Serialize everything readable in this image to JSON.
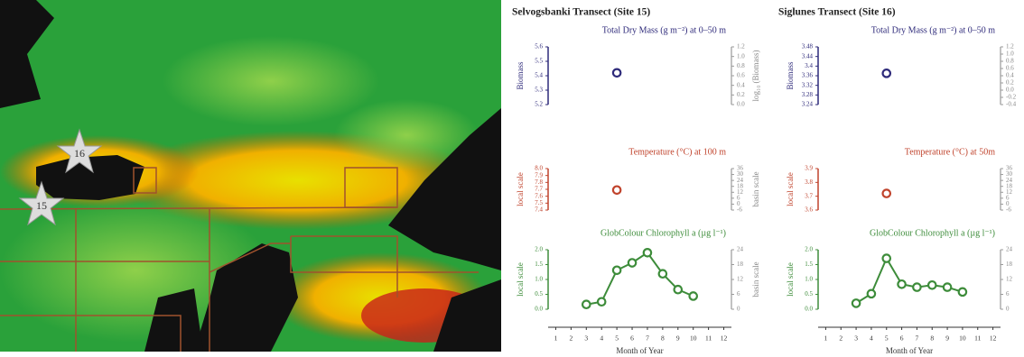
{
  "map": {
    "markers": [
      "16",
      "15"
    ]
  },
  "panels": [
    {
      "title": "Selvogsbanki Transect (Site 15)"
    },
    {
      "title": "Siglunes Transect (Site 16)"
    }
  ],
  "chart_data": [
    {
      "type": "scatter",
      "title": "Total Dry Mass (g m⁻²) at 0–50 m",
      "ylabel": "Biomass",
      "y2label": "log₁₀ (Biomass)",
      "color": "#2e2a7a",
      "x": [
        5
      ],
      "values": [
        5.42
      ],
      "xlim": [
        0.5,
        12.5
      ],
      "ylim": [
        5.2,
        5.6
      ],
      "yticks": [
        5.2,
        5.3,
        5.4,
        5.5,
        5.6
      ],
      "y2lim": [
        0,
        1.2
      ],
      "y2ticks": [
        {
          "value": 0,
          "label": "0.0"
        },
        0.2,
        0.4,
        0.6,
        0.8,
        {
          "value": 1,
          "label": "1.0"
        },
        1.2
      ]
    },
    {
      "type": "scatter",
      "title": "Temperature (°C) at 100 m",
      "ylabel": "local scale",
      "y2label": "basin scale",
      "color": "#c0432c",
      "x": [
        5
      ],
      "values": [
        7.69
      ],
      "xlim": [
        0.5,
        12.5
      ],
      "ylim": [
        7.4,
        8
      ],
      "yticks": [
        7.4,
        7.5,
        7.6,
        7.7,
        7.8,
        7.9,
        {
          "value": 8,
          "label": "8.0"
        }
      ],
      "y2lim": [
        -6,
        36
      ],
      "y2ticks": [
        -6,
        0,
        6,
        12,
        18,
        24,
        30,
        36
      ]
    },
    {
      "type": "line",
      "title": "GlobColour Chlorophyll a (µg l⁻¹)",
      "ylabel": "local scale",
      "y2label": "basin scale",
      "xlabel": "Month of Year",
      "color": "#3d8c3a",
      "x": [
        3,
        4,
        5,
        6,
        7,
        8,
        9,
        10
      ],
      "values": [
        0.16,
        0.25,
        1.31,
        1.56,
        1.9,
        1.19,
        0.66,
        0.44
      ],
      "xlim": [
        0.5,
        12.5
      ],
      "xticks": [
        1,
        2,
        3,
        4,
        5,
        6,
        7,
        8,
        9,
        10,
        11,
        12
      ],
      "ylim": [
        0,
        2
      ],
      "yticks": [
        {
          "value": 0,
          "label": "0.0"
        },
        0.5,
        {
          "value": 1,
          "label": "1.0"
        },
        1.5,
        {
          "value": 2,
          "label": "2.0"
        }
      ],
      "y2lim": [
        0,
        24
      ],
      "y2ticks": [
        0,
        6,
        12,
        18,
        24
      ]
    },
    {
      "type": "scatter",
      "title": "Total Dry Mass (g m⁻²) at 0–50 m",
      "ylabel": "Biomass",
      "color": "#2e2a7a",
      "x": [
        5
      ],
      "values": [
        3.37
      ],
      "xlim": [
        0.5,
        12.5
      ],
      "ylim": [
        3.24,
        3.48
      ],
      "yticks": [
        3.24,
        3.28,
        3.32,
        3.36,
        3.4,
        3.44,
        3.48
      ],
      "y2lim": [
        -0.4,
        1.2
      ],
      "y2ticks": [
        -0.4,
        -0.2,
        {
          "value": 0,
          "label": "0.0"
        },
        0.2,
        0.4,
        0.6,
        0.8,
        {
          "value": 1,
          "label": "1.0"
        },
        1.2
      ]
    },
    {
      "type": "scatter",
      "title": "Temperature (°C) at 50m",
      "ylabel": "local scale",
      "color": "#c0432c",
      "x": [
        5
      ],
      "values": [
        3.72
      ],
      "xlim": [
        0.5,
        12.5
      ],
      "ylim": [
        3.6,
        3.9
      ],
      "yticks": [
        3.6,
        3.7,
        3.8,
        3.9
      ],
      "y2lim": [
        -6,
        36
      ],
      "y2ticks": [
        -6,
        0,
        6,
        12,
        18,
        24,
        30,
        36
      ]
    },
    {
      "type": "line",
      "title": "GlobColour Chlorophyll a (µg l⁻¹)",
      "ylabel": "local scale",
      "xlabel": "Month of Year",
      "color": "#3d8c3a",
      "x": [
        3,
        4,
        5,
        6,
        7,
        8,
        9,
        10
      ],
      "values": [
        0.2,
        0.52,
        1.71,
        0.84,
        0.74,
        0.81,
        0.74,
        0.58
      ],
      "xlim": [
        0.5,
        12.5
      ],
      "xticks": [
        1,
        2,
        3,
        4,
        5,
        6,
        7,
        8,
        9,
        10,
        11,
        12
      ],
      "ylim": [
        0,
        2
      ],
      "yticks": [
        {
          "value": 0,
          "label": "0.0"
        },
        0.5,
        {
          "value": 1,
          "label": "1.0"
        },
        1.5,
        {
          "value": 2,
          "label": "2.0"
        }
      ],
      "y2lim": [
        0,
        24
      ],
      "y2ticks": [
        0,
        6,
        12,
        18,
        24
      ]
    }
  ]
}
